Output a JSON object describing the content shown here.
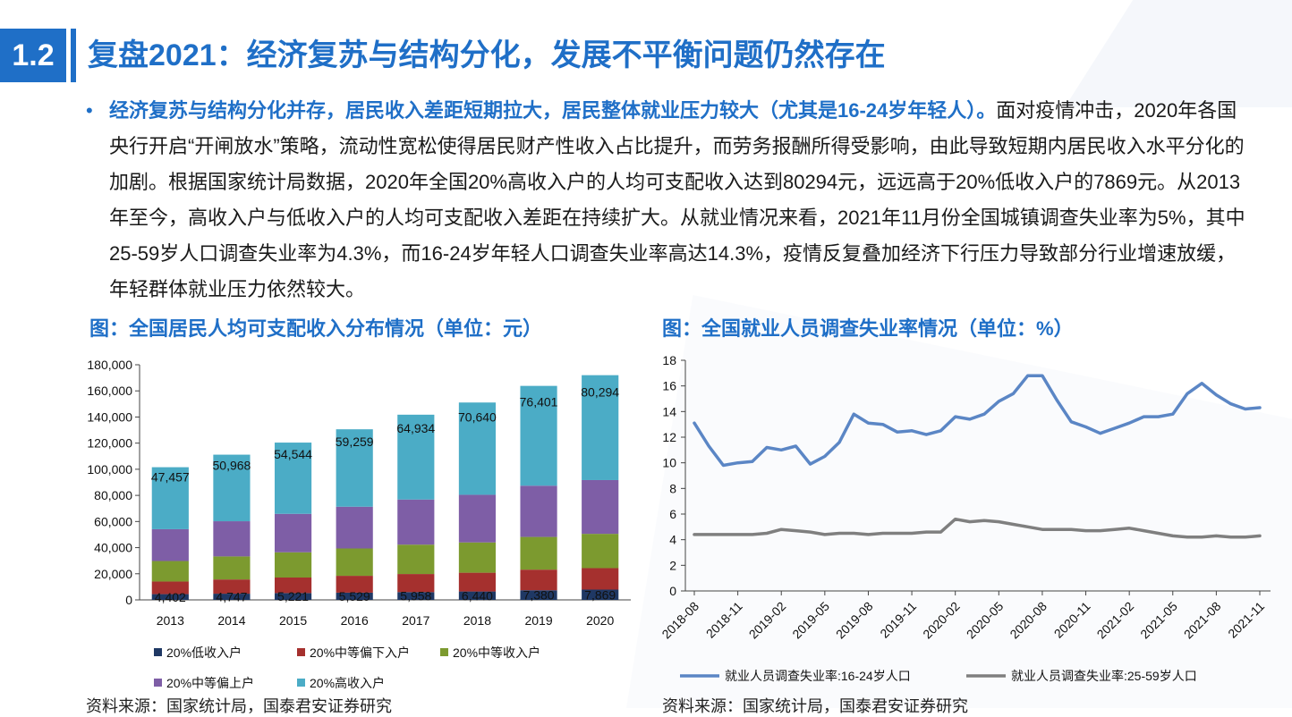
{
  "header": {
    "section_number": "1.2",
    "title": "复盘2021：经济复苏与结构分化，发展不平衡问题仍然存在"
  },
  "body": {
    "highlight": "经济复苏与结构分化并存，居民收入差距短期拉大，居民整体就业压力较大（尤其是16-24岁年轻人）。",
    "text": "面对疫情冲击，2020年各国央行开启“开闸放水”策略，流动性宽松使得居民财产性收入占比提升，而劳务报酬所得受影响，由此导致短期内居民收入水平分化的加剧。根据国家统计局数据，2020年全国20%高收入户的人均可支配收入达到80294元，远远高于20%低收入户的7869元。从2013年至今，高收入户与低收入户的人均可支配收入差距在持续扩大。从就业情况来看，2021年11月份全国城镇调查失业率为5%，其中25-59岁人口调查失业率为4.3%，而16-24岁年轻人口调查失业率高达14.3%，疫情反复叠加经济下行压力导致部分行业增速放缓，年轻群体就业压力依然较大。"
  },
  "left_chart_title": "图：全国居民人均可支配收入分布情况（单位：元）",
  "right_chart_title": "图：全国就业人员调查失业率情况（单位：%）",
  "left_source": "资料来源：国家统计局，国泰君安证券研究",
  "right_source": "资料来源：国家统计局，国泰君安证券研究",
  "chart_data": [
    {
      "type": "bar",
      "stacked": true,
      "categories": [
        "2013",
        "2014",
        "2015",
        "2016",
        "2017",
        "2018",
        "2019",
        "2020"
      ],
      "ylim": [
        0,
        180000
      ],
      "yticks": [
        "0",
        "20,000",
        "40,000",
        "60,000",
        "80,000",
        "100,000",
        "120,000",
        "140,000",
        "160,000",
        "180,000"
      ],
      "series": [
        {
          "name": "20%低收入户",
          "color": "#1f3864",
          "values": [
            4402,
            4747,
            5221,
            5529,
            5958,
            6440,
            7380,
            7869
          ],
          "labels": [
            "4,402",
            "4,747",
            "5,221",
            "5,529",
            "5,958",
            "6,440",
            "7,380",
            "7,869"
          ]
        },
        {
          "name": "20%中等偏下入户",
          "color": "#a5302e",
          "values": [
            9654,
            10887,
            11894,
            12899,
            13843,
            14361,
            15777,
            16443
          ]
        },
        {
          "name": "20%中等收入户",
          "color": "#7c9a2f",
          "values": [
            15698,
            17631,
            19320,
            20924,
            22495,
            23189,
            25035,
            26249
          ]
        },
        {
          "name": "20%中等偏上户",
          "color": "#7e5ea6",
          "values": [
            24361,
            26937,
            29438,
            31990,
            34547,
            36471,
            39230,
            41172
          ]
        },
        {
          "name": "20%高收入户",
          "color": "#4bacc6",
          "values": [
            47457,
            50968,
            54544,
            59259,
            64934,
            70640,
            76401,
            80294
          ],
          "labels": [
            "47,457",
            "50,968",
            "54,544",
            "59,259",
            "64,934",
            "70,640",
            "76,401",
            "80,294"
          ]
        }
      ],
      "legend_position": "bottom"
    },
    {
      "type": "line",
      "x_ticks": [
        "2018-08",
        "2018-11",
        "2019-02",
        "2019-05",
        "2019-08",
        "2019-11",
        "2020-02",
        "2020-05",
        "2020-08",
        "2020-11",
        "2021-02",
        "2021-05",
        "2021-08",
        "2021-11"
      ],
      "ylim": [
        0,
        18
      ],
      "yticks": [
        "0",
        "2",
        "4",
        "6",
        "8",
        "10",
        "12",
        "14",
        "16",
        "18"
      ],
      "series": [
        {
          "name": "就业人员调查失业率:16-24岁人口",
          "color": "#5b86c5",
          "values": [
            13.1,
            11.3,
            9.8,
            10.0,
            10.1,
            11.2,
            11.0,
            11.3,
            9.9,
            10.5,
            11.6,
            13.8,
            13.1,
            13.0,
            12.4,
            12.5,
            12.2,
            12.5,
            13.6,
            13.4,
            13.8,
            14.8,
            15.4,
            16.8,
            16.8,
            14.9,
            13.2,
            12.8,
            12.3,
            12.7,
            13.1,
            13.6,
            13.6,
            13.8,
            15.4,
            16.2,
            15.3,
            14.6,
            14.2,
            14.3
          ]
        },
        {
          "name": "就业人员调查失业率:25-59岁人口",
          "color": "#7f7f7f",
          "values": [
            4.4,
            4.4,
            4.4,
            4.4,
            4.4,
            4.5,
            4.8,
            4.7,
            4.6,
            4.4,
            4.5,
            4.5,
            4.4,
            4.5,
            4.5,
            4.5,
            4.6,
            4.6,
            5.6,
            5.4,
            5.5,
            5.4,
            5.2,
            5.0,
            4.8,
            4.8,
            4.8,
            4.7,
            4.7,
            4.8,
            4.9,
            4.7,
            4.5,
            4.3,
            4.2,
            4.2,
            4.3,
            4.2,
            4.2,
            4.3
          ]
        }
      ],
      "legend_position": "bottom"
    }
  ]
}
